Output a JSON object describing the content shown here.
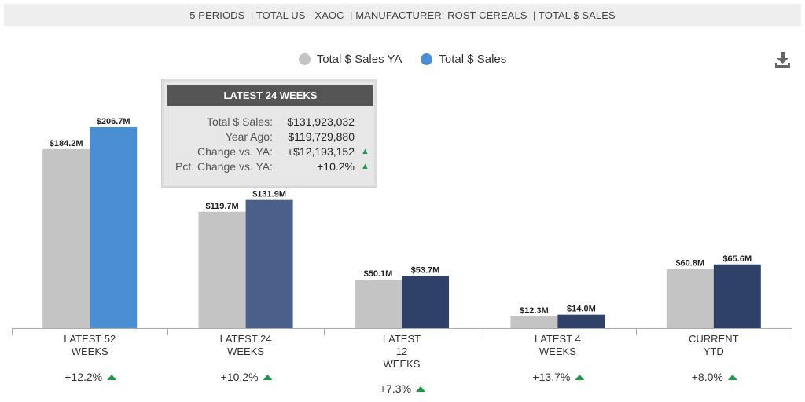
{
  "header": {
    "breadcrumb": "5 PERIODS  | TOTAL US - XAOC  | MANUFACTURER: ROST CEREALS  | TOTAL $ SALES"
  },
  "icons": {
    "download": "download-icon",
    "up_triangle": "triangle-up-icon"
  },
  "colors": {
    "ya": "#c4c4c4",
    "current": "#2f4169",
    "current_highlight": "#4a8fd4",
    "current_hover": "#4a5f8a",
    "up": "#1b9a45"
  },
  "chart_data": {
    "type": "bar",
    "title": "",
    "xlabel": "",
    "ylabel": "",
    "ylim": [
      0,
      220
    ],
    "grid": false,
    "legend_position": "top-center",
    "legend": [
      "Total $ Sales YA",
      "Total $ Sales"
    ],
    "categories": [
      "LATEST 52\nWEEKS",
      "LATEST 24\nWEEKS",
      "LATEST\n12\nWEEKS",
      "LATEST 4\nWEEKS",
      "CURRENT\nYTD"
    ],
    "series": [
      {
        "name": "Total $ Sales YA",
        "values": [
          184.2,
          119.7,
          50.1,
          12.3,
          60.8
        ],
        "labels": [
          "$184.2M",
          "$119.7M",
          "$50.1M",
          "$12.3M",
          "$60.8M"
        ]
      },
      {
        "name": "Total $ Sales",
        "values": [
          206.7,
          131.9,
          53.7,
          14.0,
          65.6
        ],
        "labels": [
          "$206.7M",
          "$131.9M",
          "$53.7M",
          "$14.0M",
          "$65.6M"
        ]
      }
    ],
    "pct_change": [
      "+12.2%",
      "+10.2%",
      "+7.3%",
      "+13.7%",
      "+8.0%"
    ],
    "highlighted_category": 0,
    "hovered_category": 1
  },
  "tooltip": {
    "title": "LATEST 24 WEEKS",
    "rows": [
      {
        "label": "Total $ Sales:",
        "value": "$131,923,032",
        "arrow": false
      },
      {
        "label": "Year Ago:",
        "value": "$119,729,880",
        "arrow": false
      },
      {
        "label": "Change vs. YA:",
        "value": "+$12,193,152",
        "arrow": true
      },
      {
        "label": "Pct. Change vs. YA:",
        "value": "+10.2%",
        "arrow": true
      }
    ]
  }
}
